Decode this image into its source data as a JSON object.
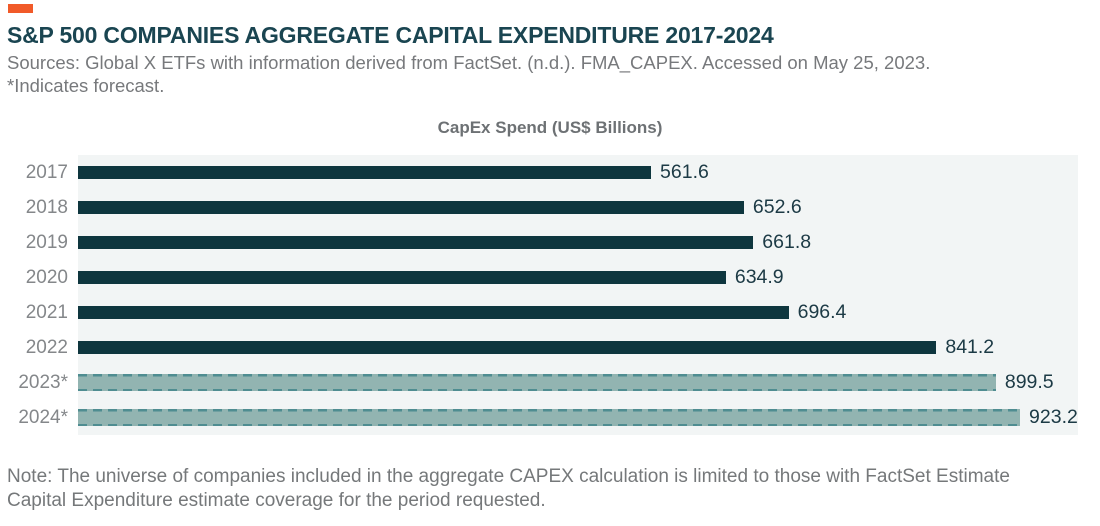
{
  "page": {
    "title": "S&P 500 COMPANIES AGGREGATE CAPITAL EXPENDITURE 2017-2024",
    "source_line": "Sources: Global X ETFs with information derived from FactSet. (n.d.). FMA_CAPEX. Accessed on May 25, 2023.",
    "forecast_indicator_note": "*Indicates forecast.",
    "footer_note": "Note: The universe of companies included in the aggregate CAPEX calculation is limited to those with FactSet Estimate Capital Expenditure estimate coverage for the period requested."
  },
  "colors": {
    "accent_orange": "#F15A29",
    "title_teal": "#1A4551",
    "bar_dark_teal": "#0E363E",
    "forecast_fill": "#92B4B1",
    "forecast_dash": "#4F8D91",
    "plot_background": "#F2F5F5",
    "gray_text": "#77797C",
    "value_text": "#1C3A45"
  },
  "chart_data": {
    "type": "bar",
    "orientation": "horizontal",
    "title": "CapEx Spend (US$ Billions)",
    "categories": [
      "2017",
      "2018",
      "2019",
      "2020",
      "2021",
      "2022",
      "2023*",
      "2024*"
    ],
    "values": [
      561.6,
      652.6,
      661.8,
      634.9,
      696.4,
      841.2,
      899.5,
      923.2
    ],
    "forecast": [
      false,
      false,
      false,
      false,
      false,
      false,
      true,
      true
    ],
    "value_labels": [
      "561.6",
      "652.6",
      "661.8",
      "634.9",
      "696.4",
      "841.2",
      "899.5",
      "923.2"
    ],
    "xlim": [
      0,
      980
    ],
    "grid": false,
    "legend": "none",
    "data_labels_position": "outside-end"
  }
}
